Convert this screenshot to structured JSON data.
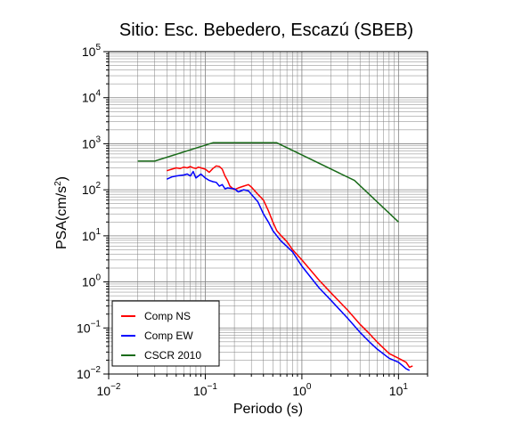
{
  "chart_data": {
    "type": "line",
    "title": "Sitio: Esc. Bebedero, Escazú (SBEB)",
    "xlabel": "Periodo (s)",
    "ylabel": "PSA(cm/s²)",
    "ylabel_prefix": "PSA(cm/s",
    "ylabel_sup": "2",
    "ylabel_suffix": ")",
    "xscale": "log",
    "yscale": "log",
    "xlim": [
      0.01,
      20
    ],
    "ylim": [
      0.01,
      100000
    ],
    "x_ticks": [
      {
        "base": "10",
        "exp": "−2",
        "value": 0.01
      },
      {
        "base": "10",
        "exp": "−1",
        "value": 0.1
      },
      {
        "base": "10",
        "exp": "0",
        "value": 1
      },
      {
        "base": "10",
        "exp": "1",
        "value": 10
      }
    ],
    "y_ticks": [
      {
        "base": "10",
        "exp": "−2",
        "value": 0.01
      },
      {
        "base": "10",
        "exp": "−1",
        "value": 0.1
      },
      {
        "base": "10",
        "exp": "0",
        "value": 1
      },
      {
        "base": "10",
        "exp": "1",
        "value": 10
      },
      {
        "base": "10",
        "exp": "2",
        "value": 100
      },
      {
        "base": "10",
        "exp": "3",
        "value": 1000
      },
      {
        "base": "10",
        "exp": "4",
        "value": 10000
      },
      {
        "base": "10",
        "exp": "5",
        "value": 100000
      }
    ],
    "grid": true,
    "legend_position": "bottom-left",
    "series": [
      {
        "name": "Comp NS",
        "color": "#ff0000",
        "points": [
          [
            0.04,
            260
          ],
          [
            0.045,
            280
          ],
          [
            0.05,
            300
          ],
          [
            0.055,
            290
          ],
          [
            0.06,
            310
          ],
          [
            0.065,
            300
          ],
          [
            0.07,
            320
          ],
          [
            0.075,
            300
          ],
          [
            0.08,
            290
          ],
          [
            0.085,
            310
          ],
          [
            0.09,
            300
          ],
          [
            0.1,
            280
          ],
          [
            0.11,
            240
          ],
          [
            0.12,
            290
          ],
          [
            0.13,
            330
          ],
          [
            0.14,
            320
          ],
          [
            0.15,
            280
          ],
          [
            0.16,
            200
          ],
          [
            0.17,
            160
          ],
          [
            0.18,
            120
          ],
          [
            0.2,
            100
          ],
          [
            0.22,
            110
          ],
          [
            0.25,
            120
          ],
          [
            0.28,
            130
          ],
          [
            0.3,
            115
          ],
          [
            0.35,
            80
          ],
          [
            0.4,
            60
          ],
          [
            0.45,
            35
          ],
          [
            0.5,
            20
          ],
          [
            0.55,
            13
          ],
          [
            0.6,
            10.5
          ],
          [
            0.7,
            7.5
          ],
          [
            0.8,
            5
          ],
          [
            1,
            3
          ],
          [
            1.5,
            1.1
          ],
          [
            2,
            0.58
          ],
          [
            3,
            0.24
          ],
          [
            4,
            0.12
          ],
          [
            5,
            0.075
          ],
          [
            6,
            0.05
          ],
          [
            8,
            0.028
          ],
          [
            10,
            0.022
          ],
          [
            12,
            0.018
          ],
          [
            13,
            0.014
          ],
          [
            14,
            0.015
          ]
        ]
      },
      {
        "name": "Comp EW",
        "color": "#0000ff",
        "points": [
          [
            0.04,
            170
          ],
          [
            0.045,
            190
          ],
          [
            0.05,
            200
          ],
          [
            0.055,
            205
          ],
          [
            0.06,
            210
          ],
          [
            0.065,
            220
          ],
          [
            0.07,
            200
          ],
          [
            0.075,
            250
          ],
          [
            0.08,
            180
          ],
          [
            0.085,
            200
          ],
          [
            0.09,
            220
          ],
          [
            0.1,
            180
          ],
          [
            0.11,
            160
          ],
          [
            0.12,
            150
          ],
          [
            0.13,
            145
          ],
          [
            0.14,
            120
          ],
          [
            0.15,
            130
          ],
          [
            0.16,
            105
          ],
          [
            0.17,
            110
          ],
          [
            0.2,
            105
          ],
          [
            0.22,
            90
          ],
          [
            0.25,
            100
          ],
          [
            0.28,
            95
          ],
          [
            0.3,
            80
          ],
          [
            0.35,
            55
          ],
          [
            0.4,
            30
          ],
          [
            0.45,
            20
          ],
          [
            0.5,
            13
          ],
          [
            0.6,
            8
          ],
          [
            0.8,
            4.5
          ],
          [
            1,
            2.2
          ],
          [
            1.5,
            0.75
          ],
          [
            2,
            0.4
          ],
          [
            3,
            0.16
          ],
          [
            4,
            0.08
          ],
          [
            5,
            0.05
          ],
          [
            6,
            0.035
          ],
          [
            8,
            0.022
          ],
          [
            10,
            0.018
          ],
          [
            12,
            0.013
          ],
          [
            13,
            0.012
          ]
        ]
      },
      {
        "name": "CSCR 2010",
        "color": "#1a6b1a",
        "points": [
          [
            0.02,
            420
          ],
          [
            0.03,
            420
          ],
          [
            0.12,
            1050
          ],
          [
            0.55,
            1050
          ],
          [
            3.5,
            160
          ],
          [
            10,
            20
          ]
        ]
      }
    ]
  }
}
